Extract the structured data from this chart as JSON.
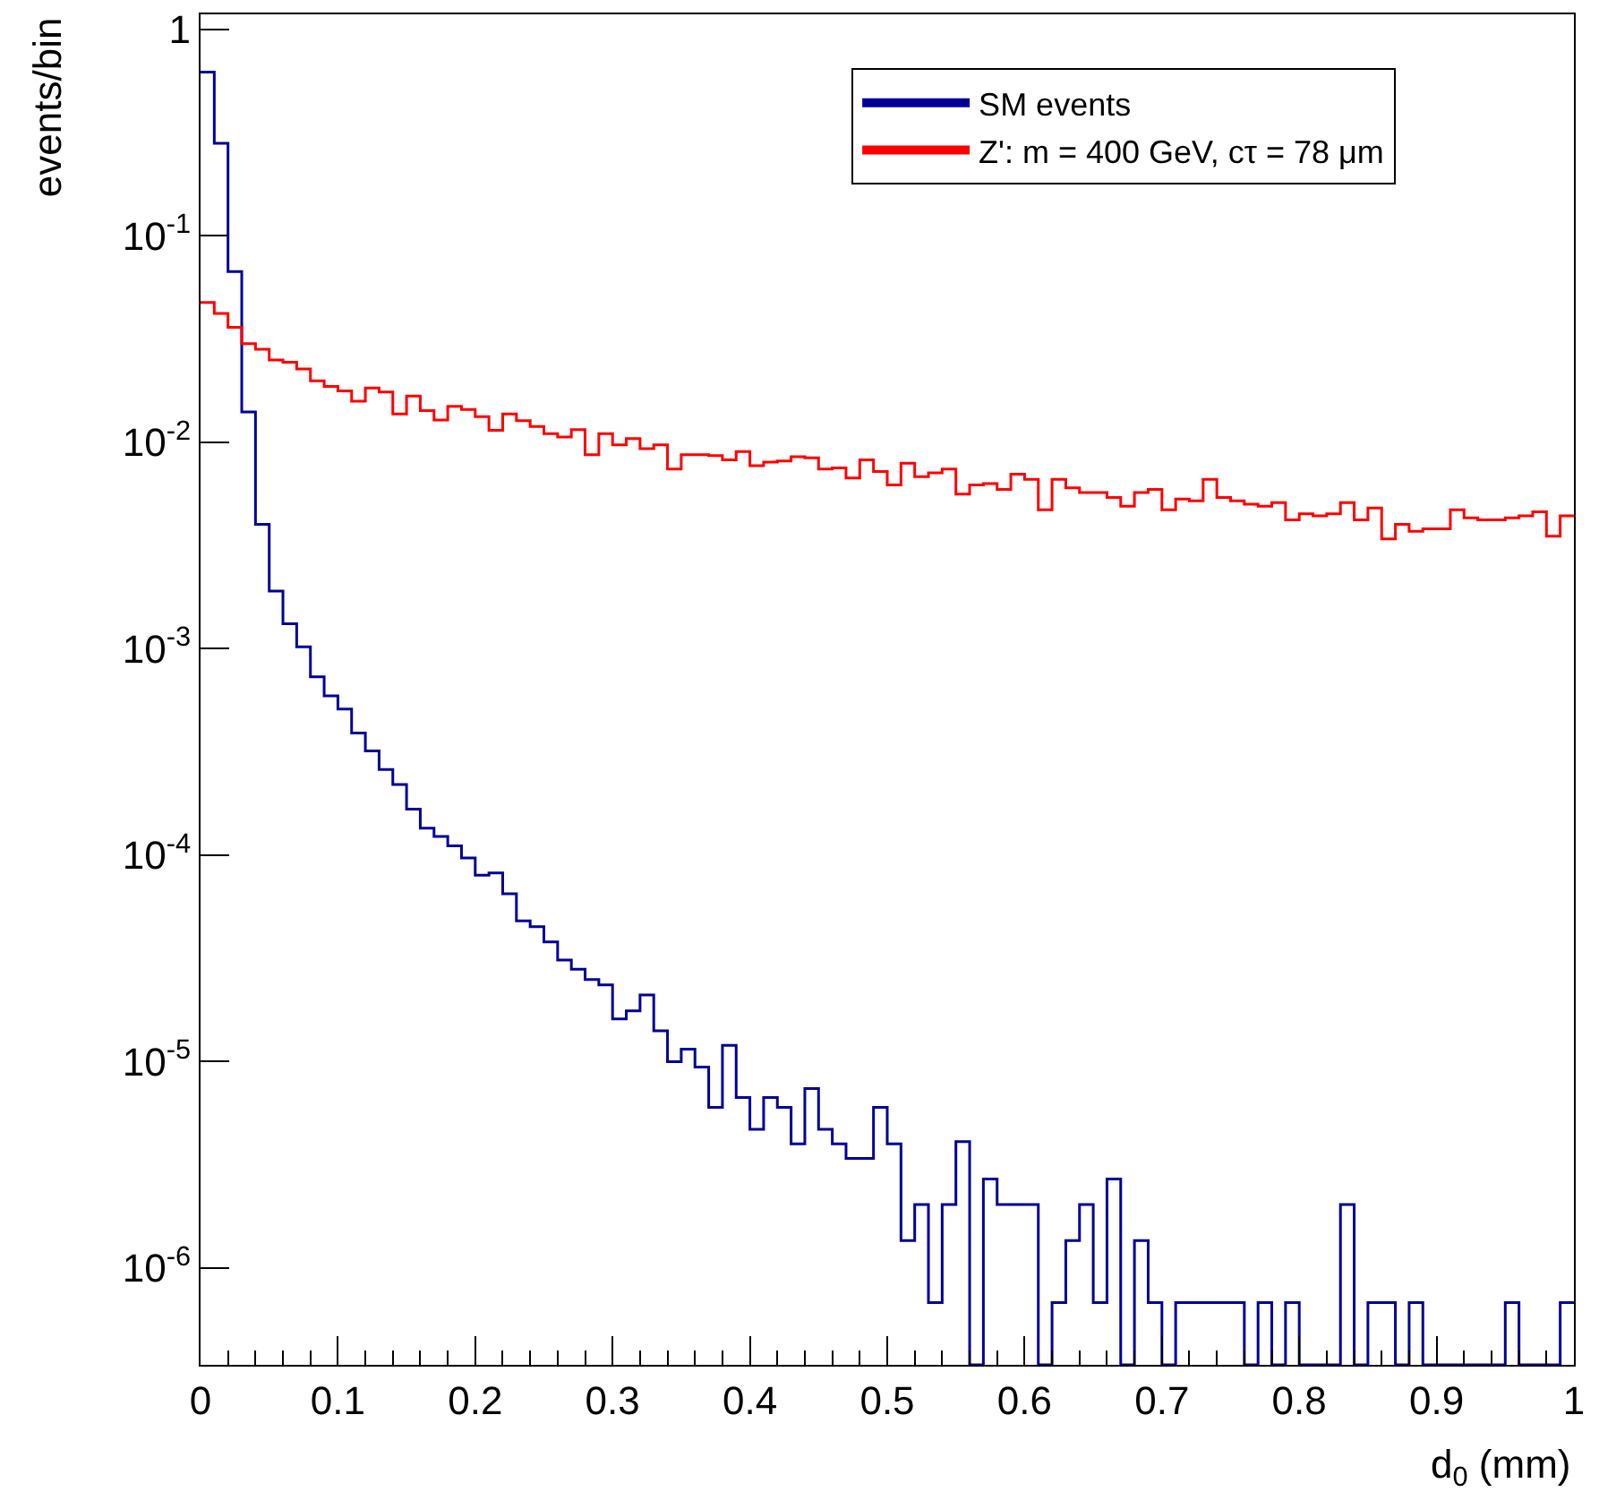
{
  "chart_data": {
    "type": "histogram",
    "xlabel": "d$_{0}$ (mm)",
    "ylabel": "events/bin",
    "log": true,
    "legend": "top right",
    "bins": [
      0,
      0.01,
      0.02,
      0.03,
      0.04,
      0.05,
      0.06,
      0.07,
      0.08,
      0.09,
      0.1,
      0.11,
      0.12,
      0.13,
      0.14,
      0.15,
      0.16,
      0.17,
      0.18,
      0.19,
      0.2,
      0.21,
      0.22,
      0.23,
      0.24,
      0.25,
      0.26,
      0.27,
      0.28,
      0.29,
      0.3,
      0.31,
      0.32,
      0.33,
      0.34,
      0.35,
      0.36,
      0.37,
      0.38,
      0.39,
      0.4,
      0.41,
      0.42,
      0.43,
      0.44,
      0.45,
      0.46,
      0.47,
      0.48,
      0.49,
      0.5,
      0.51,
      0.52,
      0.53,
      0.54,
      0.55,
      0.56,
      0.57,
      0.58,
      0.59,
      0.6,
      0.61,
      0.62,
      0.63,
      0.64,
      0.65,
      0.66,
      0.67,
      0.68,
      0.69,
      0.7,
      0.71,
      0.72,
      0.73,
      0.74,
      0.75,
      0.76,
      0.77,
      0.78,
      0.79,
      0.8,
      0.81,
      0.82,
      0.83,
      0.84,
      0.85,
      0.86,
      0.87,
      0.88,
      0.89,
      0.9,
      0.91,
      0.92,
      0.93,
      0.94,
      0.95,
      0.96,
      0.97,
      0.98,
      0.99,
      1
    ],
    "series": [
      {
        "name": "SM events",
        "color": "#000099",
        "values": [
          0.62,
          0.28,
          0.067,
          0.014,
          0.004,
          0.0019,
          0.00132,
          0.00102,
          0.00073,
          0.00059,
          0.00051,
          0.00039,
          0.00032,
          0.00026,
          0.00022,
          0.000167,
          0.000135,
          0.000123,
          0.000111,
          9.7e-05,
          8e-05,
          8.2e-05,
          6.5e-05,
          4.8e-05,
          4.5e-05,
          3.8e-05,
          3.1e-05,
          2.8e-05,
          2.5e-05,
          2.35e-05,
          1.61e-05,
          1.76e-05,
          2.1e-05,
          1.41e-05,
          1e-05,
          1.15e-05,
          9.4e-06,
          6e-06,
          1.2e-05,
          6.7e-06,
          4.7e-06,
          6.7e-06,
          6e-06,
          4e-06,
          7.4e-06,
          4.7e-06,
          4e-06,
          3.4e-06,
          3.4e-06,
          6e-06,
          4e-06,
          1.36e-06,
          2.03e-06,
          6.8e-07,
          2.03e-06,
          4.1e-06,
          null,
          2.7e-06,
          2.03e-06,
          2.03e-06,
          2.03e-06,
          null,
          6.8e-07,
          1.36e-06,
          2.03e-06,
          6.8e-07,
          2.7e-06,
          null,
          1.36e-06,
          6.8e-07,
          null,
          6.8e-07,
          6.8e-07,
          6.8e-07,
          6.8e-07,
          6.8e-07,
          null,
          6.8e-07,
          null,
          6.8e-07,
          null,
          null,
          null,
          2.03e-06,
          null,
          6.8e-07,
          6.8e-07,
          null,
          6.8e-07,
          null,
          null,
          null,
          null,
          null,
          null,
          6.8e-07,
          null,
          null,
          null,
          6.8e-07
        ]
      },
      {
        "name": "Z': m = 400 GeV, cτ = 78 μm",
        "color": "#ff0000",
        "values": [
          0.0475,
          0.042,
          0.036,
          0.03,
          0.0282,
          0.025,
          0.0244,
          0.0226,
          0.0198,
          0.0186,
          0.0177,
          0.0158,
          0.0183,
          0.0175,
          0.0137,
          0.0167,
          0.0142,
          0.0128,
          0.0149,
          0.0144,
          0.0133,
          0.0114,
          0.0137,
          0.0127,
          0.0119,
          0.011,
          0.0106,
          0.0115,
          0.0087,
          0.011,
          0.0097,
          0.0104,
          0.0093,
          0.0097,
          0.0074,
          0.0087,
          0.0087,
          0.0086,
          0.0082,
          0.009,
          0.0077,
          0.008,
          0.0081,
          0.0085,
          0.0084,
          0.0074,
          0.0075,
          0.0067,
          0.0082,
          0.0072,
          0.0062,
          0.0079,
          0.0068,
          0.0071,
          0.0074,
          0.0056,
          0.0062,
          0.0063,
          0.0059,
          0.007,
          0.0066,
          0.0047,
          0.0066,
          0.006,
          0.0057,
          0.0057,
          0.0054,
          0.0049,
          0.0057,
          0.0059,
          0.0047,
          0.0053,
          0.0052,
          0.0066,
          0.0054,
          0.0052,
          0.005,
          0.0049,
          0.0051,
          0.0042,
          0.0045,
          0.0044,
          0.0045,
          0.0051,
          0.0042,
          0.0048,
          0.0034,
          0.004,
          0.0037,
          0.0038,
          0.0038,
          0.0047,
          0.0043,
          0.0042,
          0.0042,
          0.0043,
          0.0044,
          0.0046,
          0.0035,
          0.0044
        ]
      }
    ],
    "xlim": [
      0,
      1
    ],
    "ylim": [
      3.4e-07,
      1.18
    ],
    "xticks": [
      0,
      0.1,
      0.2,
      0.3,
      0.4,
      0.5,
      0.6,
      0.7,
      0.8,
      0.9,
      1
    ],
    "yticks": [
      {
        "value": 1e-06,
        "label": "10$^{-6}$"
      },
      {
        "value": 1e-05,
        "label": "10$^{-5}$"
      },
      {
        "value": 0.0001,
        "label": "10$^{-4}$"
      },
      {
        "value": 0.001,
        "label": "10$^{-3}$"
      },
      {
        "value": 0.01,
        "label": "10$^{-2}$"
      },
      {
        "value": 0.1,
        "label": "10$^{-1}$"
      },
      1
    ]
  }
}
